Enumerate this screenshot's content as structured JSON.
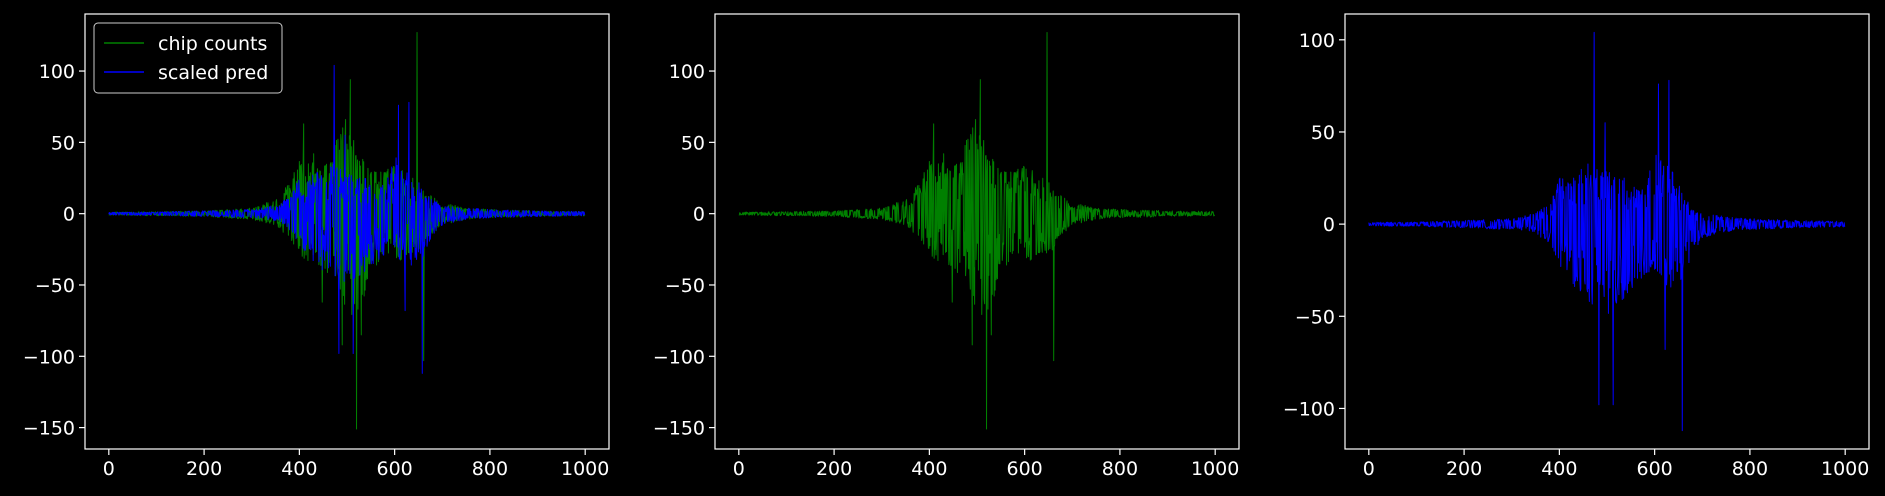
{
  "chart_data": [
    {
      "type": "line",
      "title": "",
      "xlabel": "",
      "ylabel": "",
      "xlim": [
        -50,
        1050
      ],
      "ylim": [
        -165,
        140
      ],
      "xticks": [
        0,
        200,
        400,
        600,
        800,
        1000
      ],
      "yticks": [
        -150,
        -100,
        -50,
        0,
        50,
        100
      ],
      "grid": false,
      "legend": {
        "position": "top-left"
      },
      "series": [
        {
          "name": "chip counts",
          "color": "#008000",
          "style": "symmetric-noisy",
          "n_points": 1000,
          "envelope": {
            "x": [
              0,
              100,
              200,
              300,
              350,
              380,
              400,
              420,
              450,
              480,
              500,
              520,
              550,
              580,
              600,
              620,
              640,
              660,
              680,
              700,
              750,
              800,
              900,
              1000
            ],
            "upper": [
              1,
              1.5,
              2,
              4,
              10,
              22,
              40,
              38,
              32,
              55,
              75,
              45,
              32,
              30,
              35,
              30,
              25,
              20,
              12,
              8,
              4,
              3,
              2,
              1.5
            ],
            "lower": [
              -1,
              -1.5,
              -2,
              -4,
              -8,
              -18,
              -28,
              -35,
              -38,
              -50,
              -70,
              -80,
              -40,
              -32,
              -30,
              -35,
              -30,
              -25,
              -15,
              -8,
              -4,
              -3,
              -2,
              -1.5
            ]
          },
          "spikes": [
            {
              "x": 409,
              "y": 63
            },
            {
              "x": 430,
              "y": 42
            },
            {
              "x": 448,
              "y": -62
            },
            {
              "x": 490,
              "y": -92
            },
            {
              "x": 497,
              "y": 66
            },
            {
              "x": 507,
              "y": 94
            },
            {
              "x": 520,
              "y": -151
            },
            {
              "x": 530,
              "y": -85
            },
            {
              "x": 647,
              "y": 127
            },
            {
              "x": 661,
              "y": -103
            }
          ]
        },
        {
          "name": "scaled pred",
          "color": "#0000ff",
          "style": "symmetric-noisy",
          "n_points": 1000,
          "envelope": {
            "x": [
              0,
              100,
              200,
              300,
              350,
              380,
              400,
              430,
              470,
              500,
              540,
              580,
              600,
              620,
              640,
              660,
              680,
              700,
              750,
              800,
              900,
              1000
            ],
            "upper": [
              1,
              1.2,
              2,
              3,
              6,
              12,
              25,
              28,
              35,
              30,
              25,
              22,
              40,
              35,
              30,
              15,
              10,
              6,
              4,
              3,
              2,
              1.5
            ],
            "lower": [
              -1,
              -1.2,
              -2,
              -3,
              -5,
              -12,
              -22,
              -35,
              -45,
              -50,
              -40,
              -30,
              -25,
              -40,
              -35,
              -30,
              -15,
              -8,
              -4,
              -3,
              -2,
              -1.5
            ]
          },
          "spikes": [
            {
              "x": 473,
              "y": 104
            },
            {
              "x": 483,
              "y": -98
            },
            {
              "x": 496,
              "y": 55
            },
            {
              "x": 513,
              "y": -98
            },
            {
              "x": 608,
              "y": 76
            },
            {
              "x": 622,
              "y": -68
            },
            {
              "x": 630,
              "y": 78
            },
            {
              "x": 658,
              "y": -112
            }
          ]
        }
      ]
    },
    {
      "type": "line",
      "title": "",
      "xlabel": "",
      "ylabel": "",
      "xlim": [
        -50,
        1050
      ],
      "ylim": [
        -165,
        140
      ],
      "xticks": [
        0,
        200,
        400,
        600,
        800,
        1000
      ],
      "yticks": [
        -150,
        -100,
        -50,
        0,
        50,
        100
      ],
      "grid": false,
      "series": [
        {
          "color": "#008000",
          "style": "symmetric-noisy",
          "n_points": 1000,
          "envelope": {
            "x": [
              0,
              100,
              200,
              300,
              350,
              380,
              400,
              420,
              450,
              480,
              500,
              520,
              550,
              580,
              600,
              620,
              640,
              660,
              680,
              700,
              750,
              800,
              900,
              1000
            ],
            "upper": [
              1,
              1.5,
              2,
              4,
              10,
              22,
              40,
              38,
              32,
              55,
              75,
              45,
              32,
              30,
              35,
              30,
              25,
              20,
              12,
              8,
              4,
              3,
              2,
              1.5
            ],
            "lower": [
              -1,
              -1.5,
              -2,
              -4,
              -8,
              -18,
              -28,
              -35,
              -38,
              -50,
              -70,
              -80,
              -40,
              -32,
              -30,
              -35,
              -30,
              -25,
              -15,
              -8,
              -4,
              -3,
              -2,
              -1.5
            ]
          },
          "spikes": [
            {
              "x": 409,
              "y": 63
            },
            {
              "x": 430,
              "y": 42
            },
            {
              "x": 448,
              "y": -62
            },
            {
              "x": 490,
              "y": -92
            },
            {
              "x": 497,
              "y": 66
            },
            {
              "x": 507,
              "y": 94
            },
            {
              "x": 520,
              "y": -151
            },
            {
              "x": 530,
              "y": -85
            },
            {
              "x": 647,
              "y": 127
            },
            {
              "x": 661,
              "y": -103
            }
          ]
        }
      ]
    },
    {
      "type": "line",
      "title": "",
      "xlabel": "",
      "ylabel": "",
      "xlim": [
        -50,
        1050
      ],
      "ylim": [
        -122,
        114
      ],
      "xticks": [
        0,
        200,
        400,
        600,
        800,
        1000
      ],
      "yticks": [
        -100,
        -50,
        0,
        50,
        100
      ],
      "grid": false,
      "series": [
        {
          "color": "#0000ff",
          "style": "symmetric-noisy",
          "n_points": 1000,
          "envelope": {
            "x": [
              0,
              100,
              200,
              300,
              350,
              380,
              400,
              430,
              470,
              500,
              540,
              580,
              600,
              620,
              640,
              660,
              680,
              700,
              750,
              800,
              900,
              1000
            ],
            "upper": [
              1,
              1.2,
              2,
              3,
              6,
              12,
              25,
              28,
              35,
              30,
              25,
              22,
              40,
              35,
              30,
              15,
              10,
              6,
              4,
              3,
              2,
              1.5
            ],
            "lower": [
              -1,
              -1.2,
              -2,
              -3,
              -5,
              -12,
              -22,
              -35,
              -45,
              -50,
              -40,
              -30,
              -25,
              -40,
              -35,
              -30,
              -15,
              -8,
              -4,
              -3,
              -2,
              -1.5
            ]
          },
          "spikes": [
            {
              "x": 473,
              "y": 104
            },
            {
              "x": 483,
              "y": -98
            },
            {
              "x": 496,
              "y": 55
            },
            {
              "x": 513,
              "y": -98
            },
            {
              "x": 608,
              "y": 76
            },
            {
              "x": 622,
              "y": -68
            },
            {
              "x": 630,
              "y": 78
            },
            {
              "x": 658,
              "y": -112
            }
          ]
        }
      ]
    }
  ]
}
